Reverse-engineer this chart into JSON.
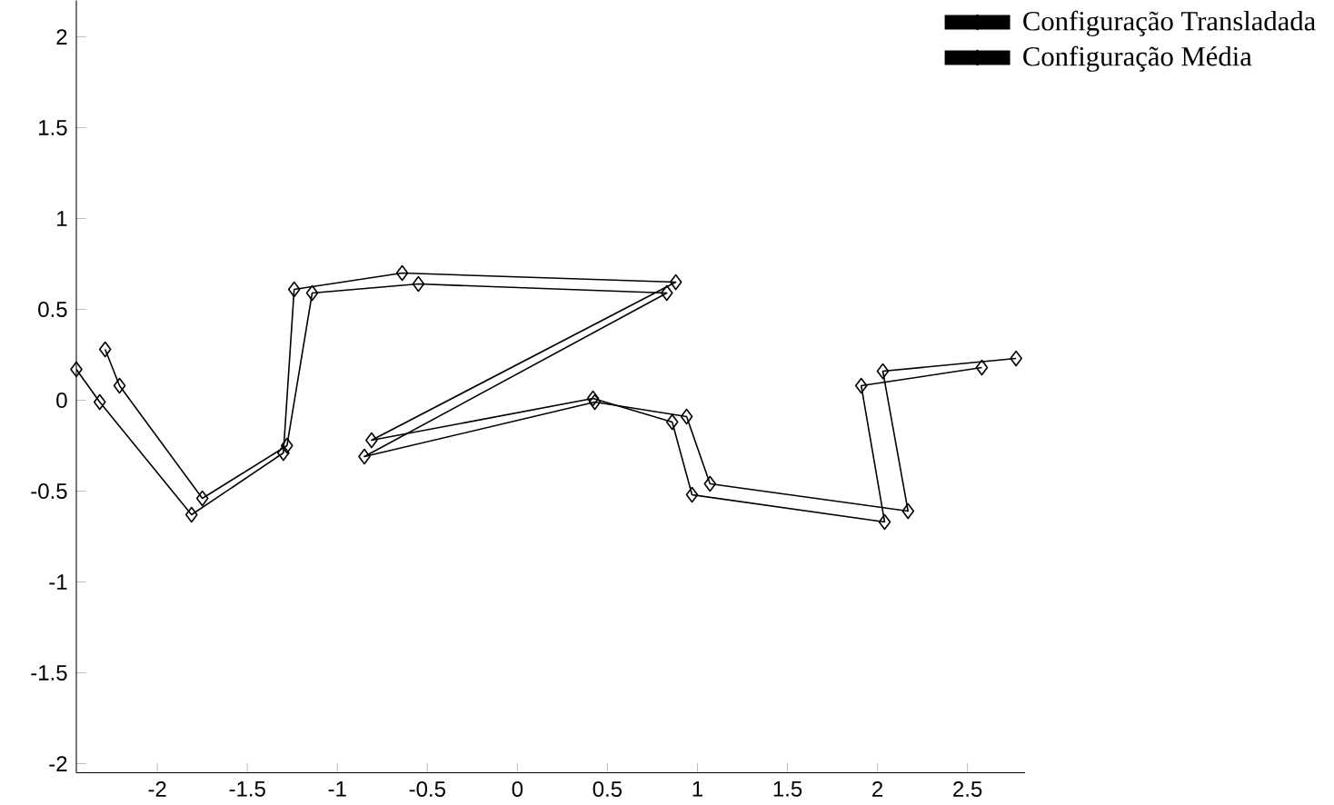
{
  "chart_data": {
    "type": "line",
    "marker": "diamond",
    "line_style": "solid",
    "grid": false,
    "legend": "top right",
    "xlim": [
      -2.45,
      2.82
    ],
    "ylim": [
      -2.05,
      2.2
    ],
    "xticks": [
      -2,
      -1.5,
      -1,
      -0.5,
      0,
      0.5,
      1,
      1.5,
      2,
      2.5
    ],
    "yticks": [
      -2,
      -1.5,
      -1,
      -0.5,
      0,
      0.5,
      1,
      1.5,
      2
    ],
    "series": [
      {
        "name": "Configuração Transladada",
        "color": "#000000",
        "x": [
          -2.45,
          -2.32,
          -1.81,
          -1.3,
          -1.24,
          -0.64,
          0.88,
          -0.81,
          0.42,
          0.86,
          0.97,
          2.04,
          1.91,
          2.58
        ],
        "values": [
          0.17,
          -0.01,
          -0.63,
          -0.29,
          0.61,
          0.7,
          0.65,
          -0.22,
          0.01,
          -0.12,
          -0.52,
          -0.67,
          0.08,
          0.18
        ]
      },
      {
        "name": "Configuração Média",
        "color": "#000000",
        "x": [
          -2.29,
          -2.21,
          -1.75,
          -1.28,
          -1.14,
          -0.55,
          0.83,
          -0.85,
          0.43,
          0.94,
          1.07,
          2.17,
          2.03,
          2.77
        ],
        "values": [
          0.28,
          0.08,
          -0.54,
          -0.25,
          0.59,
          0.64,
          0.59,
          -0.31,
          -0.01,
          -0.09,
          -0.46,
          -0.61,
          0.16,
          0.23
        ]
      }
    ]
  }
}
